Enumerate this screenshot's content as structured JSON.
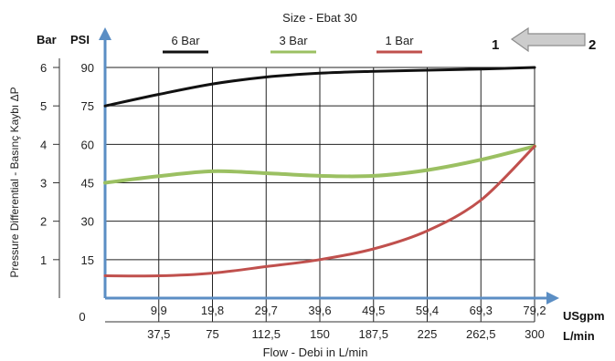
{
  "chart_data": {
    "type": "line",
    "title": "Size - Ebat 30",
    "xlabel": "Flow - Debi  in L/min",
    "ylabel": "Pressure Differential - Basınç Kaybı  ΔP",
    "x_unit_lmin": "L/min",
    "x_unit_usgpm": "USgpm",
    "y_unit_bar": "Bar",
    "y_unit_psi": "PSI",
    "xlim": [
      0,
      300
    ],
    "ylim": [
      0,
      6
    ],
    "grid": true,
    "legend_position": "top",
    "x_ticks_lmin": [
      "37,5",
      "75",
      "112,5",
      "150",
      "187,5",
      "225",
      "262,5",
      "300"
    ],
    "x_ticks_usgpm": [
      "9,9",
      "19,8",
      "29,7",
      "39,6",
      "49,5",
      "59,4",
      "69,3",
      "79,2"
    ],
    "y_ticks_bar": [
      "1",
      "2",
      "3",
      "4",
      "5",
      "6"
    ],
    "y_ticks_psi": [
      "15",
      "30",
      "45",
      "60",
      "75",
      "90"
    ],
    "zero_label": "0",
    "x": [
      0,
      37.5,
      75,
      112.5,
      150,
      187.5,
      225,
      262.5,
      300
    ],
    "series": [
      {
        "name": "6 Bar",
        "color": "#111111",
        "values": [
          5.0,
          5.3,
          5.57,
          5.75,
          5.85,
          5.9,
          5.93,
          5.96,
          6.0
        ]
      },
      {
        "name": "3 Bar",
        "color": "#9bc062",
        "values": [
          3.0,
          3.17,
          3.3,
          3.25,
          3.18,
          3.18,
          3.33,
          3.6,
          3.95
        ]
      },
      {
        "name": "1 Bar",
        "color": "#c0504d",
        "values": [
          0.58,
          0.58,
          0.65,
          0.82,
          1.0,
          1.28,
          1.75,
          2.55,
          3.95
        ]
      }
    ]
  },
  "flow_direction": {
    "inlet_label": "1",
    "outlet_label": "2",
    "arrow_color": "#cccccc"
  },
  "axis_color": "#5b8ec4"
}
